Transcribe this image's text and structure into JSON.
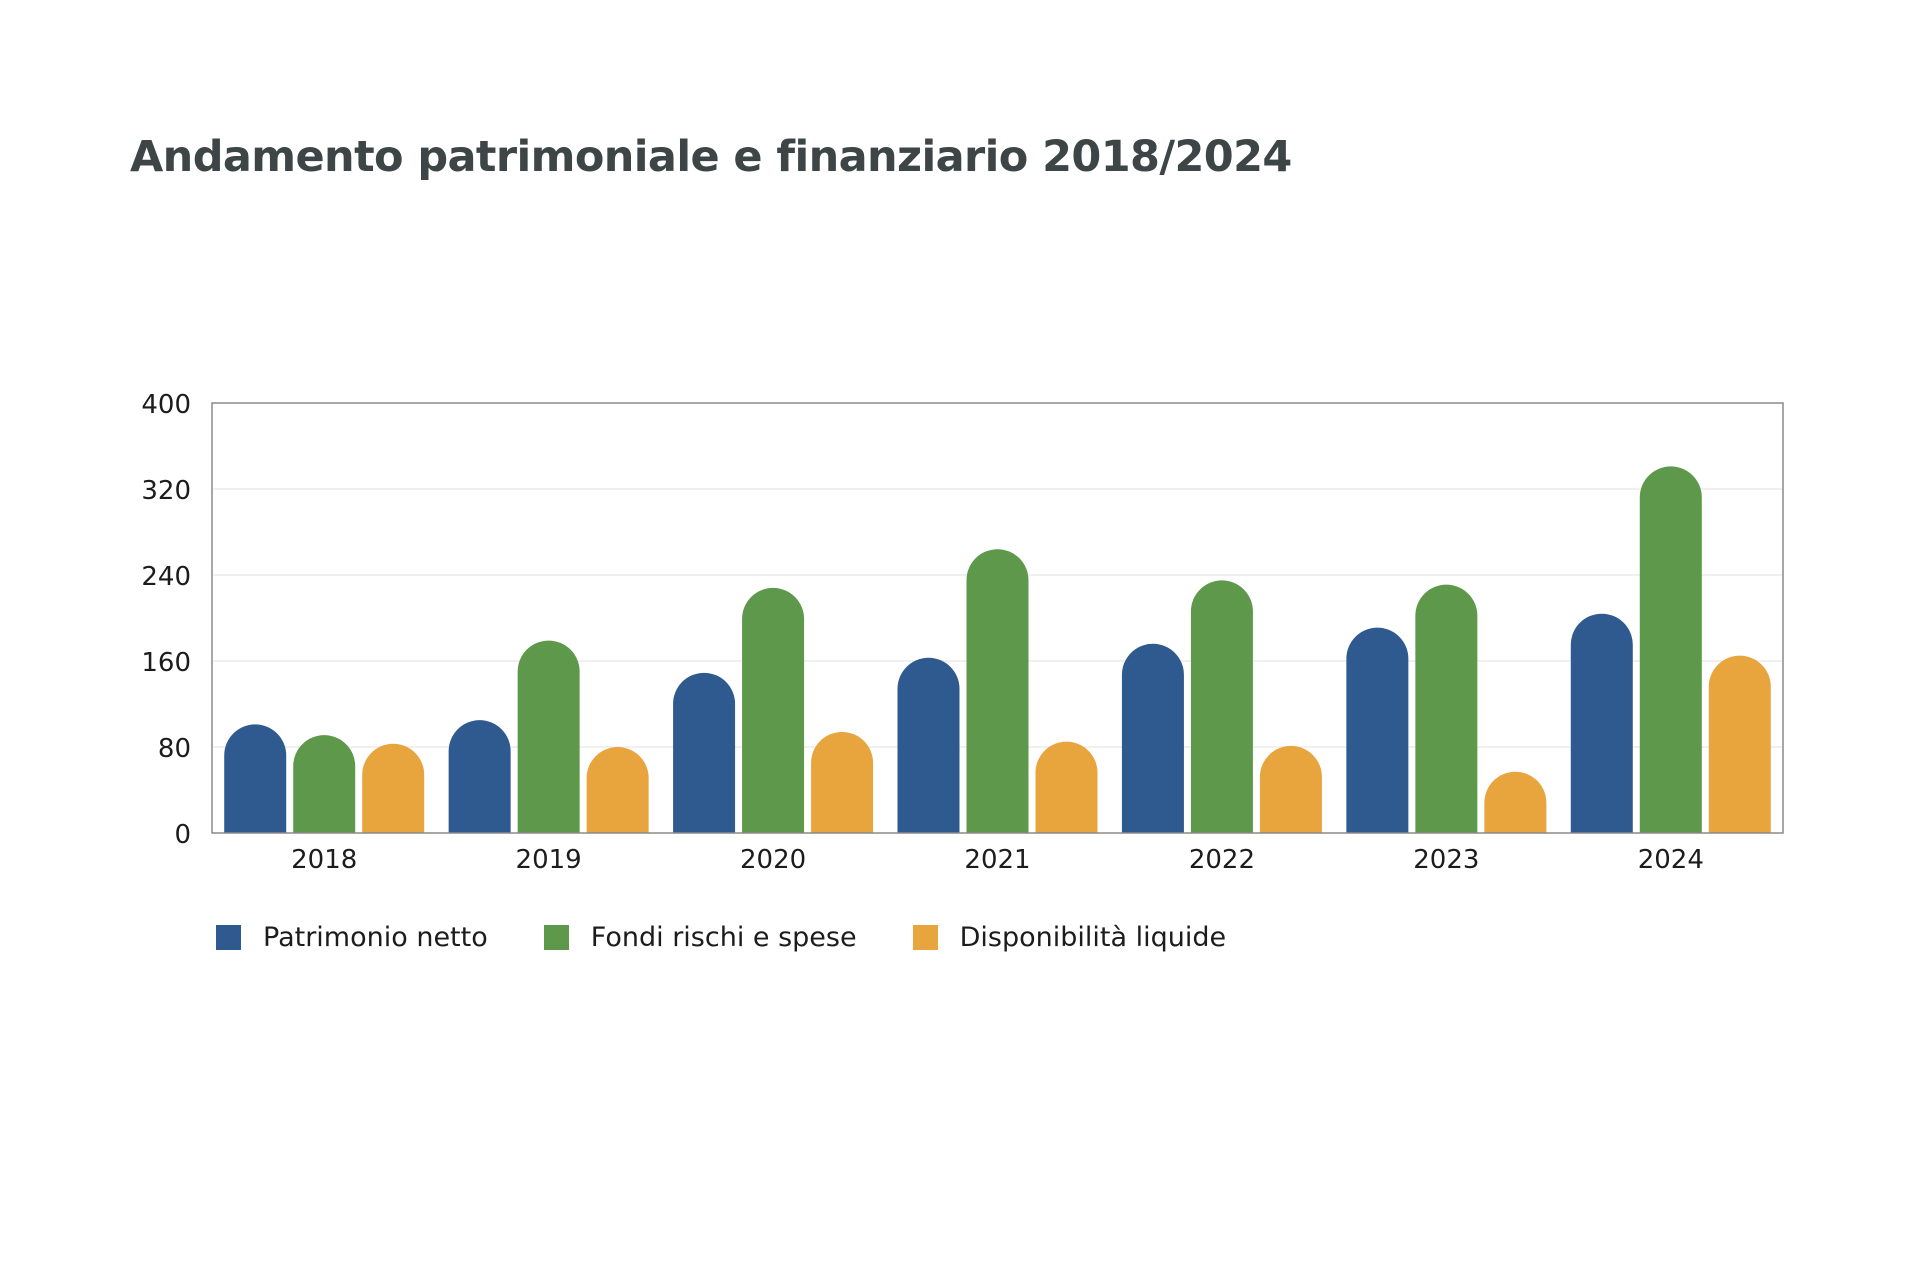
{
  "chart_data": {
    "type": "bar",
    "title": "Andamento patrimoniale e finanziario 2018/2024",
    "xlabel": "",
    "ylabel": "",
    "categories": [
      "2018",
      "2019",
      "2020",
      "2021",
      "2022",
      "2023",
      "2024"
    ],
    "ylim": [
      0,
      400
    ],
    "yticks": [
      "0",
      "80",
      "160",
      "240",
      "320",
      "400"
    ],
    "grid": true,
    "legend_position": "bottom-left",
    "series": [
      {
        "name": "Patrimonio netto",
        "color": "#2f5a8f",
        "values": [
          101,
          105,
          149,
          163,
          176,
          191,
          204
        ]
      },
      {
        "name": "Fondi rischi e spese",
        "color": "#5e984a",
        "values": [
          91,
          179,
          228,
          264,
          235,
          231,
          341
        ]
      },
      {
        "name": "Disponibilità liquide",
        "color": "#e8a43d",
        "values": [
          83,
          80,
          94,
          85,
          81,
          57,
          165
        ]
      }
    ]
  }
}
